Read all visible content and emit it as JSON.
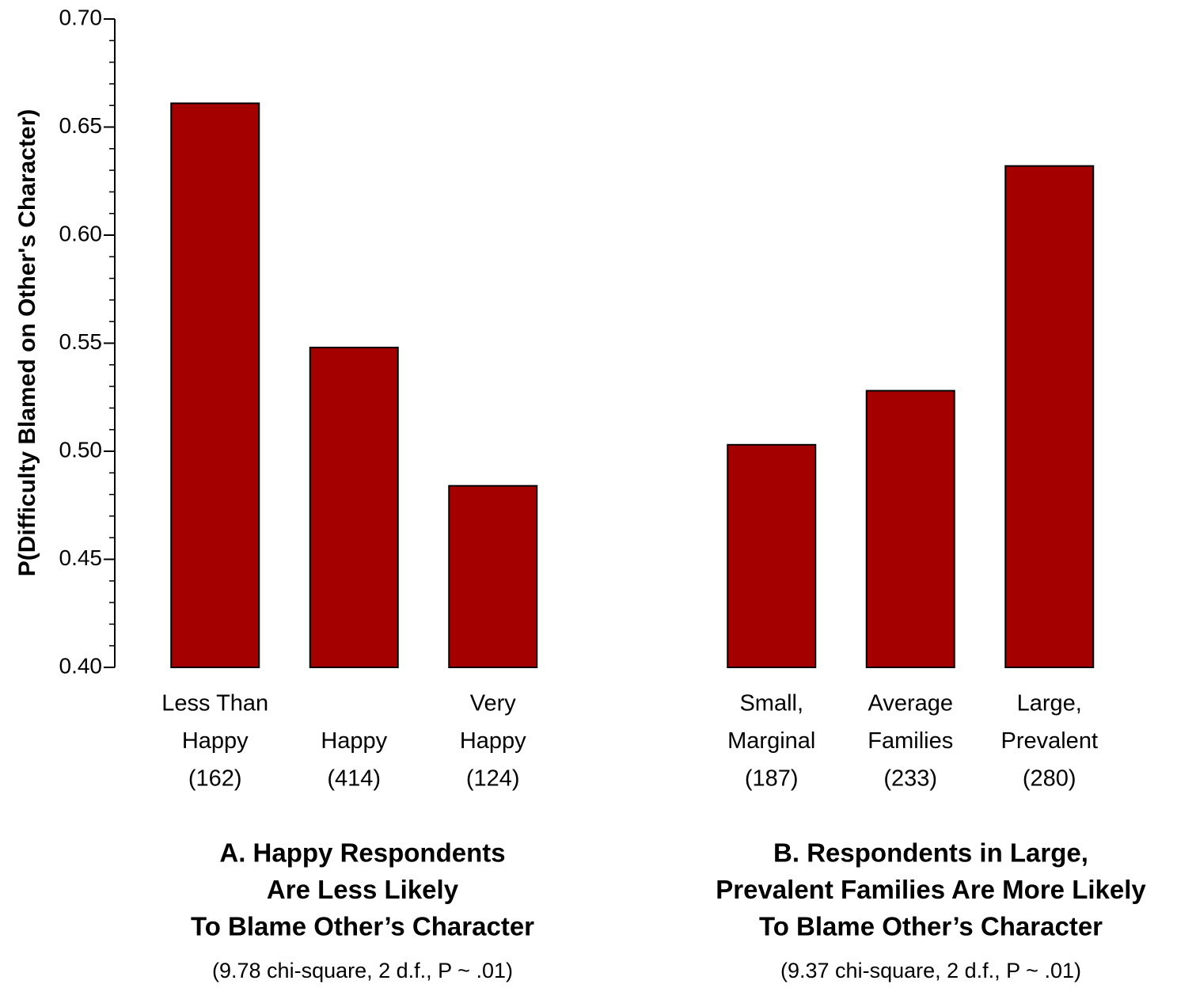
{
  "chart_data": [
    {
      "type": "bar",
      "title": [
        "A. Happy Respondents",
        "Are Less Likely",
        "To Blame Other’s Character"
      ],
      "subtitle": "(9.78 chi-square, 2 d.f., P ~ .01)",
      "y_label": "P(Difficulty Blamed on Other's Character)",
      "categories": [
        [
          "Less Than",
          "Happy",
          "(162)"
        ],
        [
          "Happy",
          "(414)"
        ],
        [
          "Very",
          "Happy",
          "(124)"
        ]
      ],
      "values": [
        0.661,
        0.548,
        0.484
      ],
      "color": "#a50000",
      "ylim": [
        0.4,
        0.7
      ],
      "yticks": [
        {
          "value": 0.4,
          "label": "0.40"
        },
        {
          "value": 0.45,
          "label": "0.45"
        },
        {
          "value": 0.5,
          "label": "0.50"
        },
        {
          "value": 0.55,
          "label": "0.55"
        },
        {
          "value": 0.6,
          "label": "0.60"
        },
        {
          "value": 0.65,
          "label": "0.65"
        },
        {
          "value": 0.7,
          "label": "0.70"
        }
      ]
    },
    {
      "type": "bar",
      "title": [
        "B. Respondents in Large,",
        "Prevalent Families Are More Likely",
        "To Blame Other’s Character"
      ],
      "subtitle": "(9.37 chi-square, 2 d.f., P ~ .01)",
      "categories": [
        [
          "Small,",
          "Marginal",
          "(187)"
        ],
        [
          "Average",
          "Families",
          "(233)"
        ],
        [
          "Large,",
          "Prevalent",
          "(280)"
        ]
      ],
      "values": [
        0.503,
        0.528,
        0.632
      ],
      "color": "#a50000",
      "ylim": [
        0.4,
        0.7
      ]
    }
  ]
}
